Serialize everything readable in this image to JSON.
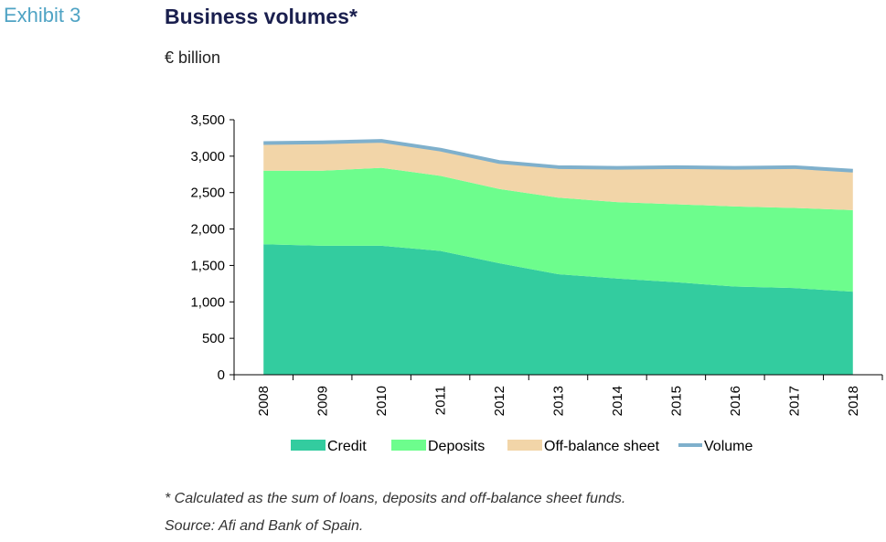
{
  "exhibit_label": "Exhibit 3",
  "notes": {
    "footnote": "* Calculated as the sum of loans, deposits and off-balance sheet funds.",
    "source": "Source: Afi and Bank of Spain."
  },
  "chart_data": {
    "type": "area",
    "title": "Business volumes*",
    "ylabel": "€ billion",
    "xlabel": "",
    "x": [
      "2008",
      "2009",
      "2010",
      "2011",
      "2012",
      "2013",
      "2014",
      "2015",
      "2016",
      "2017",
      "2018"
    ],
    "ylim": [
      0,
      3500
    ],
    "yticks": [
      0,
      500,
      1000,
      1500,
      2000,
      2500,
      3000,
      3500
    ],
    "ytick_labels": [
      "0",
      "500",
      "1,000",
      "1,500",
      "2,000",
      "2,500",
      "3,000",
      "3,500"
    ],
    "stacked": true,
    "grid": false,
    "legend_position": "bottom",
    "series": [
      {
        "name": "Credit",
        "type": "area",
        "color": "#33cc9f",
        "values": [
          1790,
          1770,
          1770,
          1700,
          1530,
          1380,
          1320,
          1270,
          1210,
          1190,
          1140
        ]
      },
      {
        "name": "Deposits",
        "type": "area",
        "color": "#6dfd8d",
        "values": [
          1010,
          1030,
          1070,
          1030,
          1020,
          1050,
          1050,
          1070,
          1100,
          1100,
          1120
        ]
      },
      {
        "name": "Off-balance sheet",
        "type": "area",
        "color": "#f2d5a8",
        "values": [
          380,
          390,
          370,
          360,
          370,
          420,
          470,
          510,
          530,
          560,
          540
        ]
      },
      {
        "name": "Volume",
        "type": "line",
        "color": "#7fb0cc",
        "values": [
          3180,
          3190,
          3210,
          3090,
          2920,
          2850,
          2840,
          2850,
          2840,
          2850,
          2800
        ]
      }
    ]
  }
}
